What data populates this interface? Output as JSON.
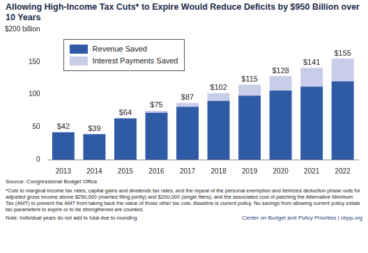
{
  "chart_data": {
    "type": "bar",
    "title": "Allowing High-Income Tax Cuts* to Expire Would Reduce Deficits by $950 Billion over 10 Years",
    "categories": [
      "2013",
      "2014",
      "2015",
      "2016",
      "2017",
      "2018",
      "2019",
      "2020",
      "2021",
      "2022"
    ],
    "series": [
      {
        "name": "Revenue Saved",
        "color": "#2f5aa6",
        "values": [
          42,
          39,
          63,
          72,
          81,
          90,
          98,
          106,
          112,
          120
        ]
      },
      {
        "name": "Interest Payments Saved",
        "color": "#c8cdea",
        "values": [
          0,
          0,
          1,
          3,
          6,
          12,
          17,
          22,
          29,
          35
        ]
      }
    ],
    "totals": [
      42,
      39,
      64,
      75,
      87,
      102,
      115,
      128,
      141,
      155
    ],
    "total_labels": [
      "$42",
      "$39",
      "$64",
      "$75",
      "$87",
      "$102",
      "$115",
      "$128",
      "$141",
      "$155"
    ],
    "stacked": true,
    "ylim": [
      0,
      200
    ],
    "yticks": [
      0,
      50,
      100,
      150,
      {
        "value": 200,
        "label": "$200 billion"
      }
    ],
    "grid": false,
    "legend": "upper left",
    "source": "Source: Congressional Budget Office",
    "footnote": "*Cuts to marginal income tax rates, capital gains and dividends tax rates, and the repeal of the personal exemption and itemized deduction phase outs for adjusted gross income above $250,000 (married filing jointly) and $200,000 (single filers); and the associated cost of patching the Alternative Minimum Tax (AMT) to prevent the AMT from taking back the value of those other tax cuts.  Baseline is current policy.  No savings from allowing current policy estate tax parameters to expire or to be strengthened are counted.",
    "note": "Note: Individual years do not add to total due to rounding",
    "credit": "Center on Budget and Policy Priorities | cbpp.org"
  }
}
